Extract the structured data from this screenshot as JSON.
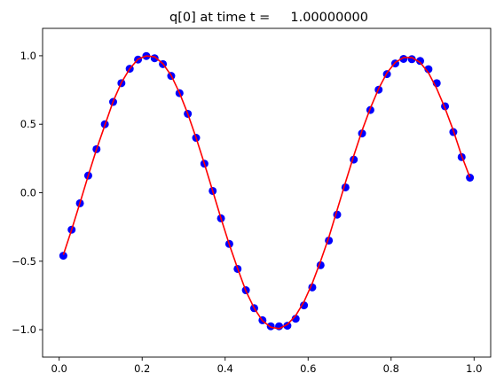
{
  "chart_data": {
    "type": "line",
    "title": "q[0] at time t =     1.00000000",
    "xlabel": "",
    "ylabel": "",
    "xlim": [
      -0.04,
      1.04
    ],
    "ylim": [
      -1.2,
      1.2
    ],
    "xticks": [
      0.0,
      0.2,
      0.4,
      0.6,
      0.8,
      1.0
    ],
    "xtick_labels": [
      "0.0",
      "0.2",
      "0.4",
      "0.6",
      "0.8",
      "1.0"
    ],
    "yticks": [
      -1.0,
      -0.5,
      0.0,
      0.5,
      1.0
    ],
    "ytick_labels": [
      "−1.0",
      "−0.5",
      "0.0",
      "0.5",
      "1.0"
    ],
    "grid": false,
    "colors": {
      "points": "#0000ff",
      "line": "#ff0000"
    },
    "series": [
      {
        "style": "points",
        "x": [
          0.01,
          0.03,
          0.05,
          0.07,
          0.09,
          0.11,
          0.13,
          0.15,
          0.17,
          0.19,
          0.21,
          0.23,
          0.25,
          0.27,
          0.29,
          0.31,
          0.33,
          0.35,
          0.37,
          0.39,
          0.41,
          0.43,
          0.45,
          0.47,
          0.49,
          0.51,
          0.53,
          0.55,
          0.57,
          0.59,
          0.61,
          0.63,
          0.65,
          0.67,
          0.69,
          0.71,
          0.73,
          0.75,
          0.77,
          0.79,
          0.81,
          0.83,
          0.85,
          0.87,
          0.89,
          0.91,
          0.93,
          0.95,
          0.97,
          0.99
        ],
        "y": [
          -0.46,
          -0.27,
          -0.077,
          0.125,
          0.318,
          0.5,
          0.663,
          0.8,
          0.905,
          0.972,
          0.998,
          0.982,
          0.939,
          0.853,
          0.727,
          0.576,
          0.401,
          0.212,
          0.013,
          -0.187,
          -0.374,
          -0.556,
          -0.712,
          -0.843,
          -0.931,
          -0.975,
          -0.975,
          -0.971,
          -0.92,
          -0.822,
          -0.691,
          -0.529,
          -0.349,
          -0.16,
          0.039,
          0.242,
          0.433,
          0.604,
          0.752,
          0.866,
          0.944,
          0.977,
          0.975,
          0.962,
          0.902,
          0.8,
          0.631,
          0.443,
          0.26,
          0.11
        ]
      },
      {
        "style": "line",
        "x": [
          0.01,
          0.03,
          0.05,
          0.07,
          0.09,
          0.11,
          0.13,
          0.15,
          0.17,
          0.19,
          0.21,
          0.23,
          0.25,
          0.27,
          0.29,
          0.31,
          0.33,
          0.35,
          0.37,
          0.39,
          0.41,
          0.43,
          0.45,
          0.47,
          0.49,
          0.51,
          0.53,
          0.55,
          0.57,
          0.59,
          0.61,
          0.63,
          0.65,
          0.67,
          0.69,
          0.71,
          0.73,
          0.75,
          0.77,
          0.79,
          0.81,
          0.83,
          0.85,
          0.87,
          0.89,
          0.91,
          0.93,
          0.95,
          0.97,
          0.99
        ],
        "y": [
          -0.454,
          -0.27,
          -0.075,
          0.125,
          0.317,
          0.492,
          0.666,
          0.804,
          0.905,
          0.975,
          0.999,
          0.992,
          0.942,
          0.856,
          0.729,
          0.576,
          0.401,
          0.212,
          0.013,
          -0.187,
          -0.378,
          -0.552,
          -0.717,
          -0.843,
          -0.935,
          -0.982,
          -0.992,
          -0.962,
          -0.897,
          -0.796,
          -0.661,
          -0.5,
          -0.325,
          -0.125,
          0.075,
          0.27,
          0.454,
          0.617,
          0.76,
          0.875,
          0.951,
          0.987,
          0.987,
          0.951,
          0.876,
          0.76,
          0.617,
          0.454,
          0.27,
          0.112
        ]
      }
    ]
  }
}
